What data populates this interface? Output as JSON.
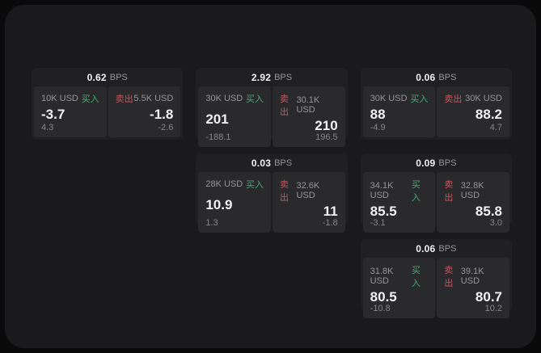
{
  "labels": {
    "bps_suffix": "BPS",
    "buy": "买入",
    "sell": "卖出"
  },
  "colors": {
    "outer_bg": "#0a0a0a",
    "panel_bg": "#1a1a1c",
    "card_bg": "#202022",
    "tile_bg": "#2a2a2d",
    "buy_green": "#3fae72",
    "sell_red": "#c6545f",
    "text_primary": "#f1f1f3",
    "text_muted": "#95959b",
    "text_dim": "#85858b"
  },
  "cards": [
    {
      "bps": "0.62",
      "row": 1,
      "col": 1,
      "buy": {
        "amount": "10K USD",
        "value": "-3.7",
        "delta": "4.3"
      },
      "sell": {
        "amount": "5.5K USD",
        "value": "-1.8",
        "delta": "-2.6"
      }
    },
    {
      "bps": "2.92",
      "row": 1,
      "col": 2,
      "buy": {
        "amount": "30K USD",
        "value": "201",
        "delta": "-188.1"
      },
      "sell": {
        "amount": "30.1K USD",
        "value": "210",
        "delta": "196.5"
      }
    },
    {
      "bps": "0.06",
      "row": 1,
      "col": 3,
      "buy": {
        "amount": "30K USD",
        "value": "88",
        "delta": "-4.9"
      },
      "sell": {
        "amount": "30K USD",
        "value": "88.2",
        "delta": "4.7"
      }
    },
    {
      "bps": "0.03",
      "row": 2,
      "col": 2,
      "buy": {
        "amount": "28K USD",
        "value": "10.9",
        "delta": "1.3"
      },
      "sell": {
        "amount": "32.6K USD",
        "value": "11",
        "delta": "-1.8"
      }
    },
    {
      "bps": "0.09",
      "row": 2,
      "col": 3,
      "buy": {
        "amount": "34.1K USD",
        "value": "85.5",
        "delta": "-3.1"
      },
      "sell": {
        "amount": "32.8K USD",
        "value": "85.8",
        "delta": "3.0"
      }
    },
    {
      "bps": "0.06",
      "row": 3,
      "col": 3,
      "buy": {
        "amount": "31.8K USD",
        "value": "80.5",
        "delta": "-10.8"
      },
      "sell": {
        "amount": "39.1K USD",
        "value": "80.7",
        "delta": "10.2"
      }
    }
  ]
}
